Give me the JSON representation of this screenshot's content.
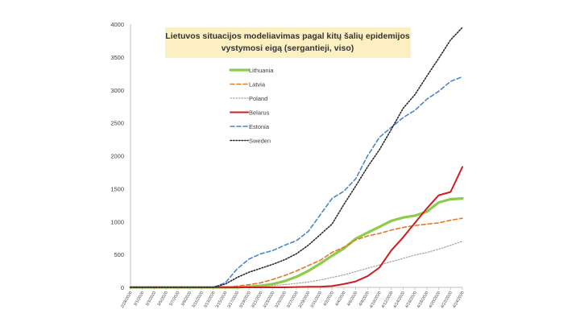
{
  "chart_data": {
    "type": "line",
    "title": "Lietuvos situacijos modeliavimas pagal kitų šalių epidemijos vystymosi eigą (sergantieji, viso)",
    "title_lines": [
      "Lietuvos situacijos  modeliavimas  pagal  kitų šalių epidemijos",
      "vystymosi eigą (sergantieji, viso)"
    ],
    "xlabel": "",
    "ylabel": "",
    "ylim": [
      0,
      4000
    ],
    "yticks": [
      0,
      500,
      1000,
      1500,
      2000,
      2500,
      3000,
      3500,
      4000
    ],
    "grid": false,
    "legend_position": "top-left",
    "title_background": "#fcefc2",
    "x_labels": [
      "2/28/2020",
      "3/1/2020",
      "3/3/2020",
      "3/5/2020",
      "3/7/2020",
      "3/9/2020",
      "3/11/2020",
      "3/13/2020",
      "3/15/2020",
      "3/17/2020",
      "3/19/2020",
      "3/21/2020",
      "3/23/2020",
      "3/25/2020",
      "3/27/2020",
      "3/29/2020",
      "3/31/2020",
      "4/2/2020",
      "4/4/2020",
      "4/6/2020",
      "4/8/2020",
      "4/10/2020",
      "4/12/2020",
      "4/14/2020",
      "4/16/2020",
      "4/18/2020",
      "4/20/2020",
      "4/22/2020",
      "4/24/2020"
    ],
    "series": [
      {
        "name": "Lithuania",
        "color": "#8ccc4c",
        "dash": "solid",
        "width": 3.2,
        "values": [
          0,
          0,
          0,
          0,
          0,
          0,
          0,
          0,
          0,
          0,
          10,
          25,
          50,
          95,
          160,
          250,
          360,
          480,
          590,
          740,
          830,
          920,
          1010,
          1060,
          1090,
          1150,
          1290,
          1340,
          1350
        ]
      },
      {
        "name": "Latvia",
        "color": "#e07b28",
        "dash": "dashed",
        "width": 1.6,
        "values": [
          0,
          0,
          0,
          0,
          0,
          0,
          0,
          0,
          0,
          20,
          40,
          70,
          120,
          180,
          250,
          330,
          410,
          530,
          610,
          720,
          780,
          820,
          870,
          910,
          940,
          960,
          980,
          1020,
          1050
        ]
      },
      {
        "name": "Poland",
        "color": "#a9a9a9",
        "dash": "dotted",
        "width": 1.3,
        "values": [
          0,
          0,
          0,
          0,
          0,
          0,
          0,
          0,
          0,
          5,
          10,
          15,
          25,
          40,
          60,
          80,
          110,
          150,
          190,
          240,
          290,
          340,
          390,
          440,
          490,
          530,
          580,
          640,
          700
        ]
      },
      {
        "name": "Belarus",
        "color": "#cc1f1f",
        "dash": "solid",
        "width": 2.0,
        "values": [
          0,
          0,
          0,
          0,
          0,
          0,
          0,
          0,
          0,
          0,
          0,
          0,
          0,
          0,
          5,
          8,
          10,
          20,
          50,
          90,
          170,
          300,
          560,
          760,
          980,
          1200,
          1400,
          1450,
          1830
        ]
      },
      {
        "name": "Estonia",
        "color": "#4a86c8",
        "dash": "dashed",
        "width": 1.6,
        "values": [
          0,
          0,
          0,
          0,
          0,
          0,
          0,
          0,
          70,
          280,
          430,
          510,
          560,
          640,
          710,
          850,
          1100,
          1350,
          1460,
          1650,
          2000,
          2280,
          2430,
          2580,
          2690,
          2860,
          2980,
          3130,
          3200
        ]
      },
      {
        "name": "Sweden",
        "color": "#2b2b2b",
        "dash": "dotted",
        "width": 1.6,
        "values": [
          0,
          0,
          0,
          0,
          0,
          0,
          0,
          0,
          50,
          150,
          230,
          290,
          350,
          420,
          510,
          640,
          800,
          960,
          1260,
          1540,
          1830,
          2090,
          2400,
          2720,
          2930,
          3210,
          3480,
          3760,
          3950
        ]
      }
    ]
  }
}
